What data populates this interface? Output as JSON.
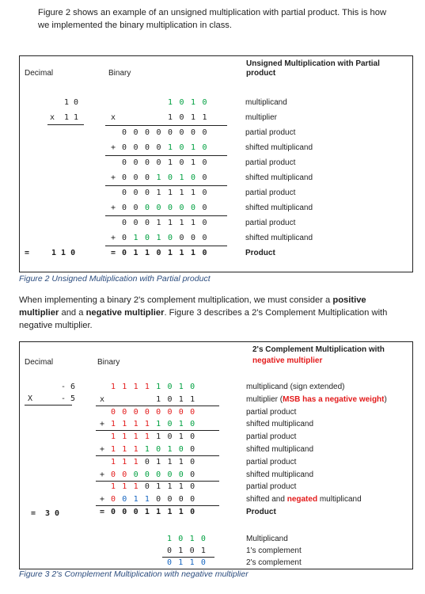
{
  "intro": {
    "text": "Figure 2 shows an example of an unsigned multiplication with partial product. This is how we implemented the binary multiplication in class."
  },
  "fig2": {
    "col_decimal": "Decimal",
    "col_binary": "Binary",
    "col_title": "Unsigned Multiplication with Partial product",
    "decimal": {
      "a": "1 0",
      "b_prefix": "x",
      "b": "1 1",
      "result_prefix": "=",
      "result": "1 1 0"
    },
    "rows": [
      {
        "op": "",
        "bits": [
          "",
          "",
          "",
          "",
          "1",
          "0",
          "1",
          "0"
        ],
        "colors": [
          "",
          "",
          "",
          "",
          "g",
          "g",
          "g",
          "g"
        ],
        "desc": "multiplicand"
      },
      {
        "op": "x",
        "bits": [
          "",
          "",
          "",
          "",
          "1",
          "0",
          "1",
          "1"
        ],
        "colors": [
          "",
          "",
          "",
          "",
          "k",
          "k",
          "k",
          "k"
        ],
        "desc": "multiplier",
        "underline": true
      },
      {
        "op": "",
        "bits": [
          "0",
          "0",
          "0",
          "0",
          "0",
          "0",
          "0",
          "0"
        ],
        "colors": [
          "k",
          "k",
          "k",
          "k",
          "k",
          "k",
          "k",
          "k"
        ],
        "desc": "partial product"
      },
      {
        "op": "+",
        "bits": [
          "0",
          "0",
          "0",
          "0",
          "1",
          "0",
          "1",
          "0"
        ],
        "colors": [
          "k",
          "k",
          "k",
          "k",
          "g",
          "g",
          "g",
          "g"
        ],
        "desc": "shifted multiplicand",
        "underline": true
      },
      {
        "op": "",
        "bits": [
          "0",
          "0",
          "0",
          "0",
          "1",
          "0",
          "1",
          "0"
        ],
        "colors": [
          "k",
          "k",
          "k",
          "k",
          "k",
          "k",
          "k",
          "k"
        ],
        "desc": "partial product"
      },
      {
        "op": "+",
        "bits": [
          "0",
          "0",
          "0",
          "1",
          "0",
          "1",
          "0",
          "0"
        ],
        "colors": [
          "k",
          "k",
          "k",
          "g",
          "g",
          "g",
          "g",
          "k"
        ],
        "desc": "shifted multiplicand",
        "underline": true
      },
      {
        "op": "",
        "bits": [
          "0",
          "0",
          "0",
          "1",
          "1",
          "1",
          "1",
          "0"
        ],
        "colors": [
          "k",
          "k",
          "k",
          "k",
          "k",
          "k",
          "k",
          "k"
        ],
        "desc": "partial product"
      },
      {
        "op": "+",
        "bits": [
          "0",
          "0",
          "0",
          "0",
          "0",
          "0",
          "0",
          "0"
        ],
        "colors": [
          "k",
          "k",
          "g",
          "g",
          "g",
          "g",
          "g",
          "k"
        ],
        "desc": "shifted multiplicand",
        "underline": true
      },
      {
        "op": "",
        "bits": [
          "0",
          "0",
          "0",
          "1",
          "1",
          "1",
          "1",
          "0"
        ],
        "colors": [
          "k",
          "k",
          "k",
          "k",
          "k",
          "k",
          "k",
          "k"
        ],
        "desc": "partial product"
      },
      {
        "op": "+",
        "bits": [
          "0",
          "1",
          "0",
          "1",
          "0",
          "0",
          "0",
          "0"
        ],
        "colors": [
          "k",
          "g",
          "g",
          "g",
          "g",
          "k",
          "k",
          "k"
        ],
        "desc": "shifted multiplicand",
        "underline": true
      },
      {
        "op": "=",
        "bits": [
          "0",
          "1",
          "1",
          "0",
          "1",
          "1",
          "1",
          "0"
        ],
        "colors": [
          "k",
          "k",
          "k",
          "k",
          "k",
          "k",
          "k",
          "k"
        ],
        "desc": "Product",
        "bold": true
      }
    ],
    "caption": "Figure 2 Unsigned Multiplication with Partial product"
  },
  "middle": {
    "p1": "When implementing a binary 2's complement multiplication, we must consider a ",
    "b1": "positive multiplier",
    "p2": " and a ",
    "b2": "negative multiplier",
    "p3": ". Figure 3 describes a 2's Complement Multiplication with negative multiplier."
  },
  "fig3": {
    "col_decimal": "Decimal",
    "col_binary": "Binary",
    "title_line1": "2's Complement Multiplication with",
    "title_line2": "negative multiplier",
    "decimal": {
      "a": "- 6",
      "b_prefix": "X",
      "b": "- 5",
      "result_prefix": "=",
      "result": "3 0"
    },
    "rows": [
      {
        "op": "",
        "bits": [
          "1",
          "1",
          "1",
          "1",
          "1",
          "0",
          "1",
          "0"
        ],
        "colors": [
          "r",
          "r",
          "r",
          "r",
          "g",
          "g",
          "g",
          "g"
        ],
        "desc": "multiplicand (sign extended)"
      },
      {
        "op": "x",
        "bits": [
          "",
          "",
          "",
          "",
          "1",
          "0",
          "1",
          "1"
        ],
        "colors": [
          "",
          "",
          "",
          "",
          "k",
          "k",
          "k",
          "k"
        ],
        "desc_a": "multiplier (",
        "desc_red": "MSB has a negative weight",
        "desc_b": ")",
        "underline": true
      },
      {
        "op": "",
        "bits": [
          "0",
          "0",
          "0",
          "0",
          "0",
          "0",
          "0",
          "0"
        ],
        "colors": [
          "r",
          "r",
          "r",
          "r",
          "r",
          "r",
          "r",
          "r"
        ],
        "desc": "partial product"
      },
      {
        "op": "+",
        "bits": [
          "1",
          "1",
          "1",
          "1",
          "1",
          "0",
          "1",
          "0"
        ],
        "colors": [
          "r",
          "r",
          "r",
          "r",
          "g",
          "g",
          "g",
          "g"
        ],
        "desc": "shifted multiplicand",
        "underline": true
      },
      {
        "op": "",
        "bits": [
          "1",
          "1",
          "1",
          "1",
          "1",
          "0",
          "1",
          "0"
        ],
        "colors": [
          "r",
          "r",
          "r",
          "r",
          "k",
          "k",
          "k",
          "k"
        ],
        "desc": "partial product"
      },
      {
        "op": "+",
        "bits": [
          "1",
          "1",
          "1",
          "1",
          "0",
          "1",
          "0",
          "0"
        ],
        "colors": [
          "r",
          "r",
          "r",
          "g",
          "g",
          "g",
          "g",
          "k"
        ],
        "desc": "shifted multiplicand",
        "underline": true
      },
      {
        "op": "",
        "bits": [
          "1",
          "1",
          "1",
          "0",
          "1",
          "1",
          "1",
          "0"
        ],
        "colors": [
          "r",
          "r",
          "r",
          "k",
          "k",
          "k",
          "k",
          "k"
        ],
        "desc": "partial product"
      },
      {
        "op": "+",
        "bits": [
          "0",
          "0",
          "0",
          "0",
          "0",
          "0",
          "0",
          "0"
        ],
        "colors": [
          "r",
          "r",
          "g",
          "g",
          "g",
          "g",
          "g",
          "k"
        ],
        "desc": "shifted multiplicand",
        "underline": true
      },
      {
        "op": "",
        "bits": [
          "1",
          "1",
          "1",
          "0",
          "1",
          "1",
          "1",
          "0"
        ],
        "colors": [
          "r",
          "r",
          "r",
          "k",
          "k",
          "k",
          "k",
          "k"
        ],
        "desc": "partial product"
      },
      {
        "op": "+",
        "bits": [
          "0",
          "0",
          "1",
          "1",
          "0",
          "0",
          "0",
          "0"
        ],
        "colors": [
          "r",
          "b",
          "b",
          "b",
          "k",
          "k",
          "k",
          "k"
        ],
        "desc_a": "shifted and ",
        "desc_red": "negated",
        "desc_b": " multiplicand",
        "underline": true
      },
      {
        "op": "=",
        "bits": [
          "0",
          "0",
          "0",
          "1",
          "1",
          "1",
          "1",
          "0"
        ],
        "colors": [
          "k",
          "k",
          "k",
          "k",
          "k",
          "k",
          "k",
          "k"
        ],
        "desc": "Product",
        "bold": true
      }
    ],
    "neg_rows": [
      {
        "bits": [
          "1",
          "0",
          "1",
          "0"
        ],
        "colors": [
          "g",
          "g",
          "g",
          "g"
        ],
        "desc": "Multiplicand"
      },
      {
        "bits": [
          "0",
          "1",
          "0",
          "1"
        ],
        "colors": [
          "k",
          "k",
          "k",
          "k"
        ],
        "desc": "1's complement",
        "underline": true
      },
      {
        "bits": [
          "0",
          "1",
          "1",
          "0"
        ],
        "colors": [
          "b",
          "b",
          "b",
          "b"
        ],
        "desc": "2's complement"
      }
    ],
    "caption": "Figure 3 2's Complement Multiplication with negative multiplier"
  },
  "colors": {
    "green": "#00a040",
    "red": "#e31b1b",
    "blue": "#1565c0",
    "text": "#1f1f1f",
    "caption": "#2b4c7e"
  }
}
